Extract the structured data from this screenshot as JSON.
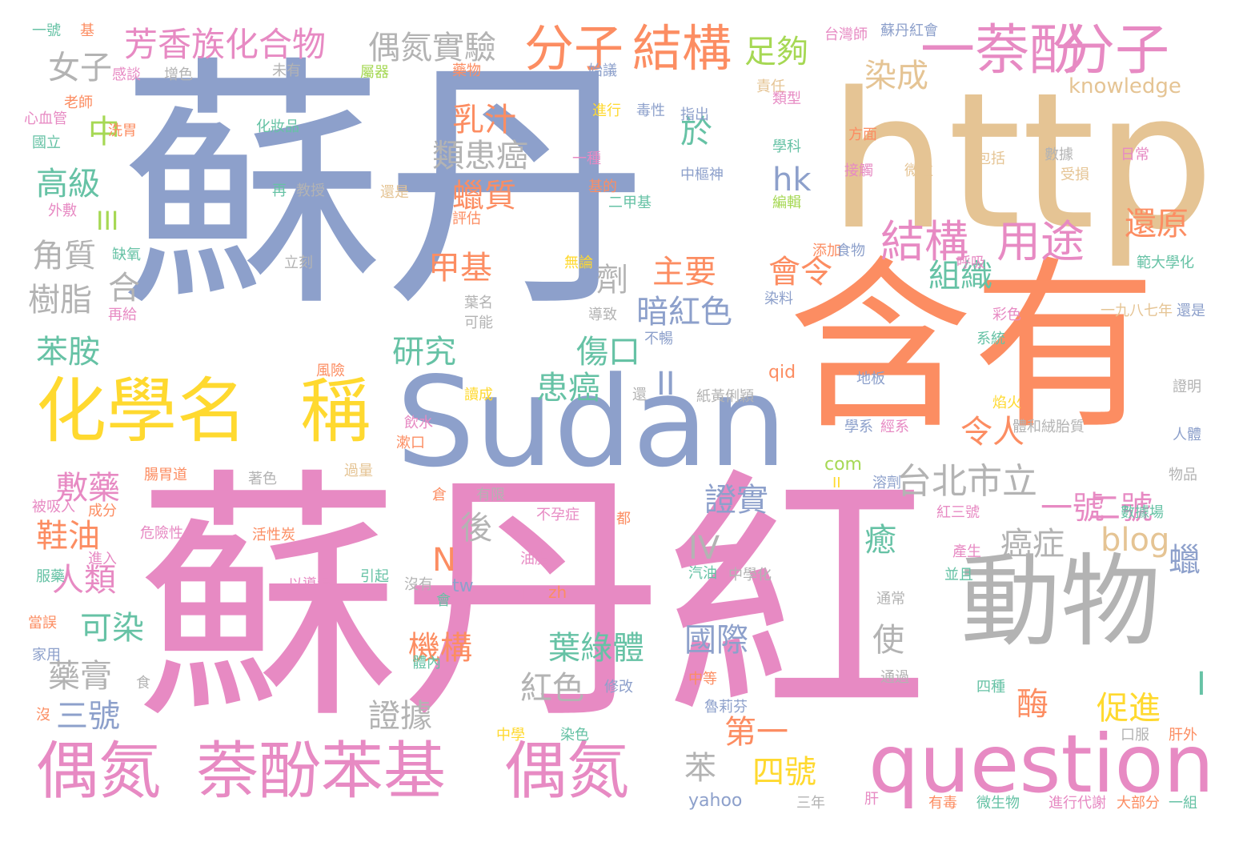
{
  "palette": {
    "blue": "#8da0cb",
    "pink": "#e78ac3",
    "orange": "#fc8d62",
    "tan": "#e5c494",
    "yellow": "#ffd92f",
    "gray": "#b3b3b3",
    "teal": "#66c2a5",
    "green": "#a6d854"
  },
  "words": [
    {
      "text": "蘇丹",
      "color": "blue"
    },
    {
      "text": "蘇丹紅",
      "color": "pink"
    },
    {
      "text": "http",
      "color": "tan"
    },
    {
      "text": "含有",
      "color": "orange"
    },
    {
      "text": "Sudan",
      "color": "blue"
    },
    {
      "text": "動物",
      "color": "gray"
    },
    {
      "text": "question",
      "color": "pink"
    },
    {
      "text": "化學名",
      "color": "yellow"
    },
    {
      "text": "稱",
      "color": "yellow"
    },
    {
      "text": "偶氮",
      "color": "pink"
    },
    {
      "text": "萘酚苯基",
      "color": "pink"
    },
    {
      "text": "偶氮",
      "color": "pink"
    },
    {
      "text": "一萘酚",
      "color": "pink"
    },
    {
      "text": "分子",
      "color": "pink"
    },
    {
      "text": "分子",
      "color": "orange"
    },
    {
      "text": "結構",
      "color": "orange"
    },
    {
      "text": "結構",
      "color": "pink"
    },
    {
      "text": "用途",
      "color": "pink"
    },
    {
      "text": "芳香族化合物",
      "color": "pink"
    },
    {
      "text": "偶氮實驗",
      "color": "gray"
    },
    {
      "text": "足夠",
      "color": "green"
    },
    {
      "text": "女子",
      "color": "gray"
    },
    {
      "text": "中",
      "color": "green"
    },
    {
      "text": "高級",
      "color": "teal"
    },
    {
      "text": "III",
      "color": "green"
    },
    {
      "text": "角質",
      "color": "gray"
    },
    {
      "text": "樹脂",
      "color": "gray"
    },
    {
      "text": "合",
      "color": "gray"
    },
    {
      "text": "苯胺",
      "color": "teal"
    },
    {
      "text": "敷藥",
      "color": "pink"
    },
    {
      "text": "鞋油",
      "color": "orange"
    },
    {
      "text": "人類",
      "color": "pink"
    },
    {
      "text": "可染",
      "color": "teal"
    },
    {
      "text": "藥膏",
      "color": "gray"
    },
    {
      "text": "三號",
      "color": "blue"
    },
    {
      "text": "乳汁",
      "color": "orange"
    },
    {
      "text": "類患癌",
      "color": "gray"
    },
    {
      "text": "蠟質",
      "color": "orange"
    },
    {
      "text": "甲基",
      "color": "orange"
    },
    {
      "text": "於",
      "color": "teal"
    },
    {
      "text": "染成",
      "color": "tan"
    },
    {
      "text": "hk",
      "color": "blue"
    },
    {
      "text": "主要",
      "color": "orange"
    },
    {
      "text": "暗紅色",
      "color": "blue"
    },
    {
      "text": "劑",
      "color": "gray"
    },
    {
      "text": "研究",
      "color": "teal"
    },
    {
      "text": "傷口",
      "color": "teal"
    },
    {
      "text": "患癌",
      "color": "teal"
    },
    {
      "text": "II",
      "color": "blue"
    },
    {
      "text": "後",
      "color": "gray"
    },
    {
      "text": "N",
      "color": "orange"
    },
    {
      "text": "機構",
      "color": "orange"
    },
    {
      "text": "葉綠體",
      "color": "teal"
    },
    {
      "text": "國際",
      "color": "blue"
    },
    {
      "text": "紅色",
      "color": "gray"
    },
    {
      "text": "證據",
      "color": "gray"
    },
    {
      "text": "苯",
      "color": "gray"
    },
    {
      "text": "第一",
      "color": "orange"
    },
    {
      "text": "四號",
      "color": "yellow"
    },
    {
      "text": "證實",
      "color": "blue"
    },
    {
      "text": "IV",
      "color": "gray"
    },
    {
      "text": "會令",
      "color": "orange"
    },
    {
      "text": "組織",
      "color": "teal"
    },
    {
      "text": "台北市立",
      "color": "gray"
    },
    {
      "text": "令人",
      "color": "orange"
    },
    {
      "text": "一號",
      "color": "pink"
    },
    {
      "text": "二號",
      "color": "pink"
    },
    {
      "text": "還原",
      "color": "orange"
    },
    {
      "text": "癌症",
      "color": "gray"
    },
    {
      "text": "癒",
      "color": "teal"
    },
    {
      "text": "blog",
      "color": "tan"
    },
    {
      "text": "蠟",
      "color": "blue"
    },
    {
      "text": "使",
      "color": "gray"
    },
    {
      "text": "酶",
      "color": "orange"
    },
    {
      "text": "促進",
      "color": "yellow"
    },
    {
      "text": "I",
      "color": "teal"
    },
    {
      "text": "knowledge",
      "color": "tan"
    },
    {
      "text": "一號",
      "color": "teal"
    },
    {
      "text": "基",
      "color": "orange"
    },
    {
      "text": "台灣師",
      "color": "pink"
    },
    {
      "text": "蘇丹紅會",
      "color": "blue"
    },
    {
      "text": "感談",
      "color": "pink"
    },
    {
      "text": "增色",
      "color": "gray"
    },
    {
      "text": "未有",
      "color": "gray"
    },
    {
      "text": "屬器",
      "color": "green"
    },
    {
      "text": "藥物",
      "color": "orange"
    },
    {
      "text": "始議",
      "color": "blue"
    },
    {
      "text": "責任",
      "color": "tan"
    },
    {
      "text": "老師",
      "color": "orange"
    },
    {
      "text": "心血管",
      "color": "pink"
    },
    {
      "text": "國立",
      "color": "teal"
    },
    {
      "text": "洗胃",
      "color": "orange"
    },
    {
      "text": "化妝品",
      "color": "teal"
    },
    {
      "text": "進行",
      "color": "yellow"
    },
    {
      "text": "毒性",
      "color": "blue"
    },
    {
      "text": "指出",
      "color": "blue"
    },
    {
      "text": "類型",
      "color": "pink"
    },
    {
      "text": "學科",
      "color": "teal"
    },
    {
      "text": "方面",
      "color": "orange"
    },
    {
      "text": "一種",
      "color": "pink"
    },
    {
      "text": "中樞神",
      "color": "blue"
    },
    {
      "text": "包括",
      "color": "tan"
    },
    {
      "text": "數據",
      "color": "gray"
    },
    {
      "text": "日常",
      "color": "pink"
    },
    {
      "text": "接觸",
      "color": "pink"
    },
    {
      "text": "微粒",
      "color": "tan"
    },
    {
      "text": "受損",
      "color": "tan"
    },
    {
      "text": "外敷",
      "color": "pink"
    },
    {
      "text": "再",
      "color": "teal"
    },
    {
      "text": "教授",
      "color": "gray"
    },
    {
      "text": "還是",
      "color": "tan"
    },
    {
      "text": "基的",
      "color": "orange"
    },
    {
      "text": "二甲基",
      "color": "teal"
    },
    {
      "text": "評估",
      "color": "orange"
    },
    {
      "text": "編輯",
      "color": "green"
    },
    {
      "text": "缺氧",
      "color": "teal"
    },
    {
      "text": "立刻",
      "color": "gray"
    },
    {
      "text": "無論",
      "color": "yellow"
    },
    {
      "text": "添加",
      "color": "orange"
    },
    {
      "text": "食物",
      "color": "blue"
    },
    {
      "text": "呼吸",
      "color": "pink"
    },
    {
      "text": "範大學化",
      "color": "teal"
    },
    {
      "text": "葉名",
      "color": "gray"
    },
    {
      "text": "可能",
      "color": "gray"
    },
    {
      "text": "染料",
      "color": "blue"
    },
    {
      "text": "彩色",
      "color": "pink"
    },
    {
      "text": "導致",
      "color": "gray"
    },
    {
      "text": "一九八七年",
      "color": "tan"
    },
    {
      "text": "還是",
      "color": "blue"
    },
    {
      "text": "再給",
      "color": "pink"
    },
    {
      "text": "不暢",
      "color": "blue"
    },
    {
      "text": "系統",
      "color": "teal"
    },
    {
      "text": "風險",
      "color": "orange"
    },
    {
      "text": "qid",
      "color": "orange"
    },
    {
      "text": "地板",
      "color": "blue"
    },
    {
      "text": "還",
      "color": "gray"
    },
    {
      "text": "紙黃俐穎",
      "color": "gray"
    },
    {
      "text": "證明",
      "color": "gray"
    },
    {
      "text": "焰火",
      "color": "yellow"
    },
    {
      "text": "讀成",
      "color": "yellow"
    },
    {
      "text": "學系",
      "color": "blue"
    },
    {
      "text": "經系",
      "color": "pink"
    },
    {
      "text": "體和絨胎質",
      "color": "gray"
    },
    {
      "text": "人體",
      "color": "blue"
    },
    {
      "text": "腸胃道",
      "color": "orange"
    },
    {
      "text": "著色",
      "color": "gray"
    },
    {
      "text": "過量",
      "color": "tan"
    },
    {
      "text": "飲水",
      "color": "pink"
    },
    {
      "text": "漱口",
      "color": "orange"
    },
    {
      "text": "com",
      "color": "green"
    },
    {
      "text": "II",
      "color": "yellow"
    },
    {
      "text": "溶劑",
      "color": "blue"
    },
    {
      "text": "物品",
      "color": "gray"
    },
    {
      "text": "被吸入",
      "color": "pink"
    },
    {
      "text": "成分",
      "color": "orange"
    },
    {
      "text": "危險性",
      "color": "pink"
    },
    {
      "text": "活性炭",
      "color": "orange"
    },
    {
      "text": "倉",
      "color": "orange"
    },
    {
      "text": "有限",
      "color": "gray"
    },
    {
      "text": "不孕症",
      "color": "pink"
    },
    {
      "text": "都",
      "color": "orange"
    },
    {
      "text": "紅三號",
      "color": "pink"
    },
    {
      "text": "數據場",
      "color": "teal"
    },
    {
      "text": "產生",
      "color": "pink"
    },
    {
      "text": "油脂",
      "color": "pink"
    },
    {
      "text": "汽油",
      "color": "teal"
    },
    {
      "text": "中學化",
      "color": "gray"
    },
    {
      "text": "並且",
      "color": "teal"
    },
    {
      "text": "進入",
      "color": "pink"
    },
    {
      "text": "服藥",
      "color": "teal"
    },
    {
      "text": "以導滑",
      "color": "pink"
    },
    {
      "text": "引起",
      "color": "teal"
    },
    {
      "text": "沒有",
      "color": "gray"
    },
    {
      "text": "會",
      "color": "teal"
    },
    {
      "text": "tw",
      "color": "blue"
    },
    {
      "text": "I",
      "color": "pink"
    },
    {
      "text": "zh",
      "color": "orange"
    },
    {
      "text": "通常",
      "color": "gray"
    },
    {
      "text": "當誤",
      "color": "orange"
    },
    {
      "text": "家用",
      "color": "blue"
    },
    {
      "text": "體內",
      "color": "teal"
    },
    {
      "text": "修改",
      "color": "blue"
    },
    {
      "text": "食",
      "color": "gray"
    },
    {
      "text": "中等",
      "color": "orange"
    },
    {
      "text": "魯莉芬",
      "color": "blue"
    },
    {
      "text": "通過",
      "color": "gray"
    },
    {
      "text": "四種",
      "color": "teal"
    },
    {
      "text": "沒",
      "color": "orange"
    },
    {
      "text": "中學",
      "color": "yellow"
    },
    {
      "text": "染色",
      "color": "teal"
    },
    {
      "text": "口服",
      "color": "gray"
    },
    {
      "text": "肝外",
      "color": "orange"
    },
    {
      "text": "yahoo",
      "color": "blue"
    },
    {
      "text": "三年",
      "color": "gray"
    },
    {
      "text": "肝",
      "color": "pink"
    },
    {
      "text": "有毒",
      "color": "orange"
    },
    {
      "text": "微生物",
      "color": "teal"
    },
    {
      "text": "進行代謝",
      "color": "pink"
    },
    {
      "text": "大部分",
      "color": "orange"
    },
    {
      "text": "一組",
      "color": "teal"
    }
  ]
}
